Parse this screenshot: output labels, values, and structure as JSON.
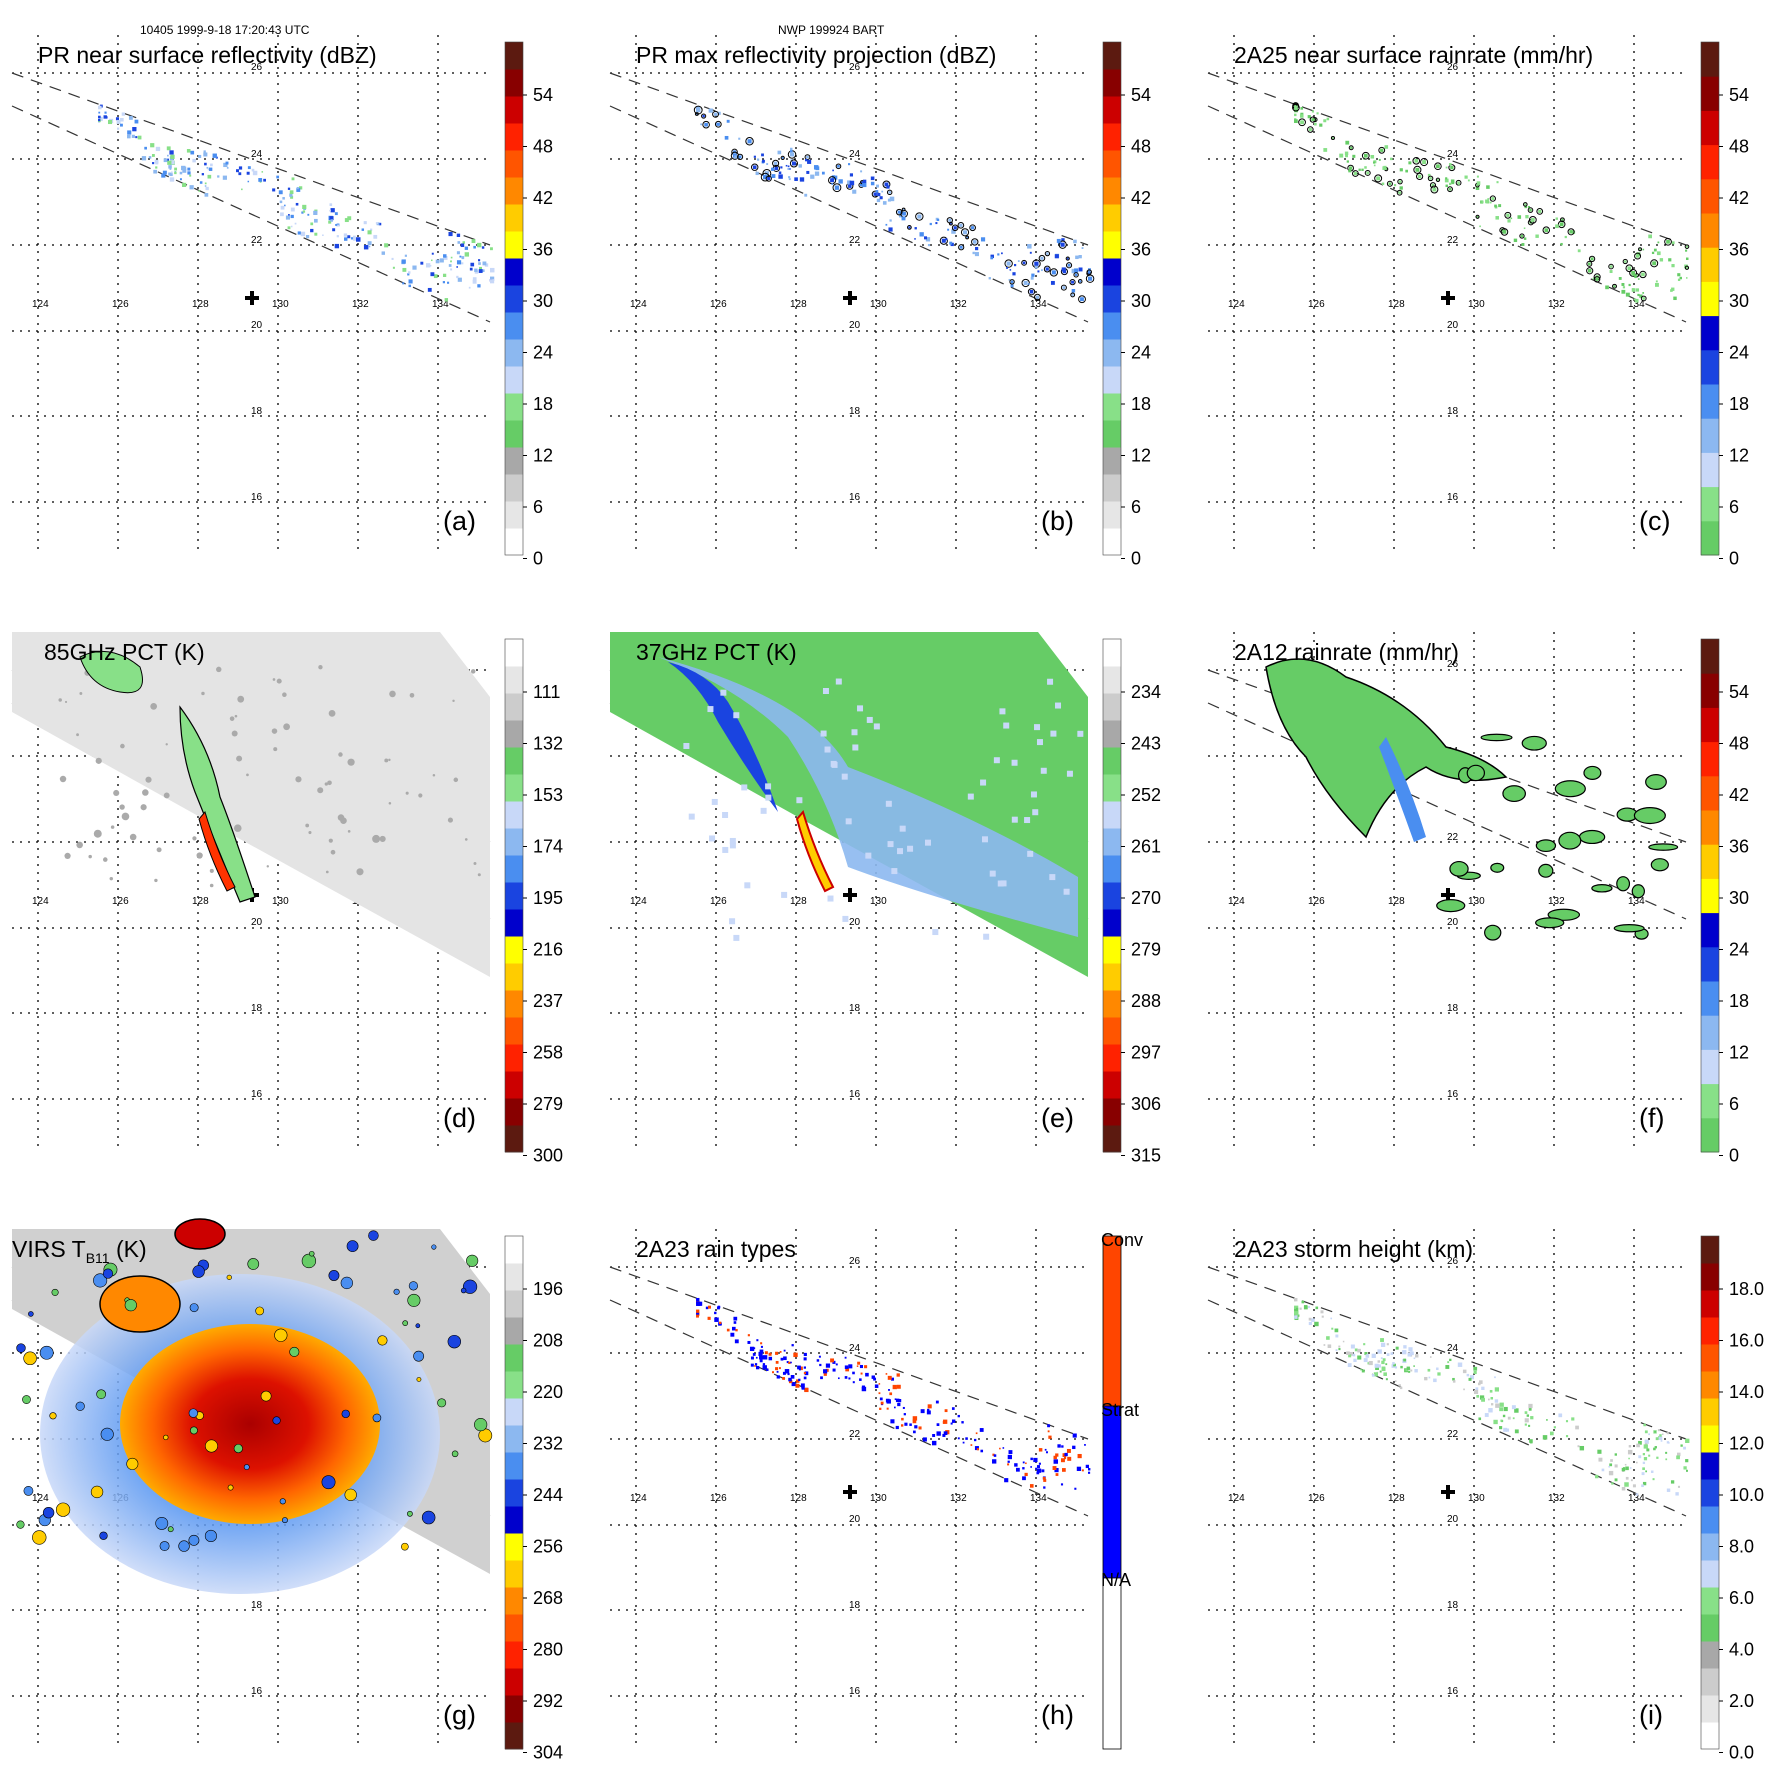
{
  "header": {
    "left": "10405 1999-9-18 17:20:43 UTC",
    "center": "NWP 199924 BART"
  },
  "map": {
    "lon_labels": [
      "124",
      "126",
      "128",
      "130",
      "132",
      "134"
    ],
    "lat_labels": [
      "26",
      "24",
      "22",
      "20",
      "18",
      "16"
    ],
    "storm_center_marker": "plus-icon"
  },
  "panels": [
    {
      "id": "a",
      "title": "PR near surface reflectivity (dBZ)",
      "label": "(a)",
      "scale": "dbz",
      "colorbar_labels": [
        "54",
        "48",
        "42",
        "36",
        "30",
        "24",
        "18",
        "12",
        "6",
        "0"
      ]
    },
    {
      "id": "b",
      "title": "PR max reflectivity projection (dBZ)",
      "label": "(b)",
      "scale": "dbz",
      "colorbar_labels": [
        "54",
        "48",
        "42",
        "36",
        "30",
        "24",
        "18",
        "12",
        "6",
        "0"
      ]
    },
    {
      "id": "c",
      "title": "2A25 near surface rainrate (mm/hr)",
      "label": "(c)",
      "scale": "rain",
      "colorbar_labels": [
        "54",
        "48",
        "42",
        "36",
        "30",
        "24",
        "18",
        "12",
        "6",
        "0"
      ]
    },
    {
      "id": "d",
      "title": "85GHz PCT (K)",
      "label": "(d)",
      "scale": "tb",
      "colorbar_labels": [
        "111",
        "132",
        "153",
        "174",
        "195",
        "216",
        "237",
        "258",
        "279",
        "300"
      ]
    },
    {
      "id": "e",
      "title": "37GHz PCT (K)",
      "label": "(e)",
      "scale": "tb",
      "colorbar_labels": [
        "234",
        "243",
        "252",
        "261",
        "270",
        "279",
        "288",
        "297",
        "306",
        "315"
      ]
    },
    {
      "id": "f",
      "title": "2A12 rainrate (mm/hr)",
      "label": "(f)",
      "scale": "rain",
      "colorbar_labels": [
        "54",
        "48",
        "42",
        "36",
        "30",
        "24",
        "18",
        "12",
        "6",
        "0"
      ]
    },
    {
      "id": "g",
      "title": "VIRS T",
      "title_sub": "B11",
      "title_end": " (K)",
      "label": "(g)",
      "scale": "tb",
      "colorbar_labels": [
        "196",
        "208",
        "220",
        "232",
        "244",
        "256",
        "268",
        "280",
        "292",
        "304"
      ]
    },
    {
      "id": "h",
      "title": "2A23 rain types",
      "label": "(h)",
      "scale": "types",
      "colorbar_labels": [
        "Conv",
        "Strat",
        "N/A"
      ]
    },
    {
      "id": "i",
      "title": "2A23 storm height (km)",
      "label": "(i)",
      "scale": "height",
      "colorbar_labels": [
        "18.0",
        "16.0",
        "14.0",
        "12.0",
        "10.0",
        "8.0",
        "6.0",
        "4.0",
        "2.0",
        "0.0"
      ]
    }
  ],
  "colors": {
    "convective": "#ff4500",
    "stratiform": "#0000ff",
    "na": "#ffffff",
    "scales": {
      "dbz": [
        "#ffffff",
        "#e6e6e6",
        "#cccccc",
        "#a8a8a8",
        "#66cc66",
        "#88e088",
        "#c8d8f8",
        "#8cb8f0",
        "#4a8ef0",
        "#1a44e0",
        "#0000cc",
        "#ffff00",
        "#ffcc00",
        "#ff8800",
        "#ff5500",
        "#ff2200",
        "#cc0000",
        "#880000",
        "#5c1a10"
      ],
      "rain": [
        "#66cc66",
        "#88e088",
        "#c8d8f8",
        "#8cb8f0",
        "#4a8ef0",
        "#1a44e0",
        "#0000cc",
        "#ffff00",
        "#ffcc00",
        "#ff8800",
        "#ff5500",
        "#ff2200",
        "#cc0000",
        "#880000",
        "#5c1a10"
      ],
      "tb": [
        "#5c1a10",
        "#880000",
        "#cc0000",
        "#ff2200",
        "#ff5500",
        "#ff8800",
        "#ffcc00",
        "#ffff00",
        "#0000cc",
        "#1a44e0",
        "#4a8ef0",
        "#8cb8f0",
        "#c8d8f8",
        "#88e088",
        "#66cc66",
        "#a8a8a8",
        "#cccccc",
        "#e6e6e6",
        "#ffffff"
      ],
      "height": [
        "#ffffff",
        "#e6e6e6",
        "#cccccc",
        "#a8a8a8",
        "#66cc66",
        "#88e088",
        "#c8d8f8",
        "#8cb8f0",
        "#4a8ef0",
        "#1a44e0",
        "#0000cc",
        "#ffff00",
        "#ffcc00",
        "#ff8800",
        "#ff5500",
        "#ff2200",
        "#cc0000",
        "#880000",
        "#5c1a10"
      ]
    }
  }
}
